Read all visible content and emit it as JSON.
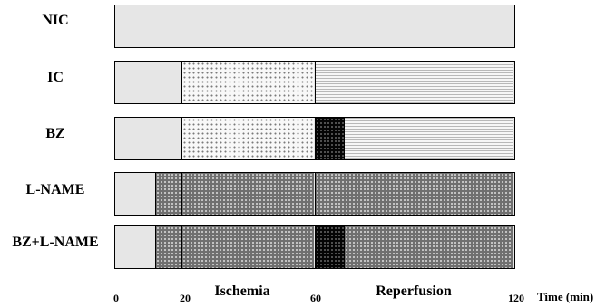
{
  "rows": [
    {
      "label": "NIC",
      "segments": [
        {
          "from": 0,
          "to": 120,
          "fill": "plain"
        }
      ]
    },
    {
      "label": "IC",
      "segments": [
        {
          "from": 0,
          "to": 20,
          "fill": "plain"
        },
        {
          "from": 20,
          "to": 60,
          "fill": "stipple"
        },
        {
          "from": 60,
          "to": 120,
          "fill": "hlines"
        }
      ]
    },
    {
      "label": "BZ",
      "segments": [
        {
          "from": 0,
          "to": 20,
          "fill": "plain"
        },
        {
          "from": 20,
          "to": 60,
          "fill": "stipple"
        },
        {
          "from": 60,
          "to": 69,
          "fill": "black"
        },
        {
          "from": 69,
          "to": 120,
          "fill": "hlines"
        }
      ]
    },
    {
      "label": "L-NAME",
      "segments": [
        {
          "from": 0,
          "to": 12,
          "fill": "plain"
        },
        {
          "from": 12,
          "to": 20,
          "fill": "dark"
        },
        {
          "from": 20,
          "to": 60,
          "fill": "dark"
        },
        {
          "from": 60,
          "to": 120,
          "fill": "dark"
        }
      ]
    },
    {
      "label": "BZ+L-NAME",
      "segments": [
        {
          "from": 0,
          "to": 12,
          "fill": "plain"
        },
        {
          "from": 12,
          "to": 20,
          "fill": "dark"
        },
        {
          "from": 20,
          "to": 60,
          "fill": "dark"
        },
        {
          "from": 60,
          "to": 69,
          "fill": "black"
        },
        {
          "from": 69,
          "to": 120,
          "fill": "dark"
        }
      ]
    }
  ],
  "axis": {
    "ticks": [
      0,
      20,
      60,
      120
    ],
    "tick_labels": [
      "0",
      "20",
      "60",
      "120"
    ],
    "title": "Time (min)",
    "range": [
      0,
      120
    ]
  },
  "phases": {
    "ischemia": "Ischemia",
    "reperfusion": "Reperfusion"
  }
}
